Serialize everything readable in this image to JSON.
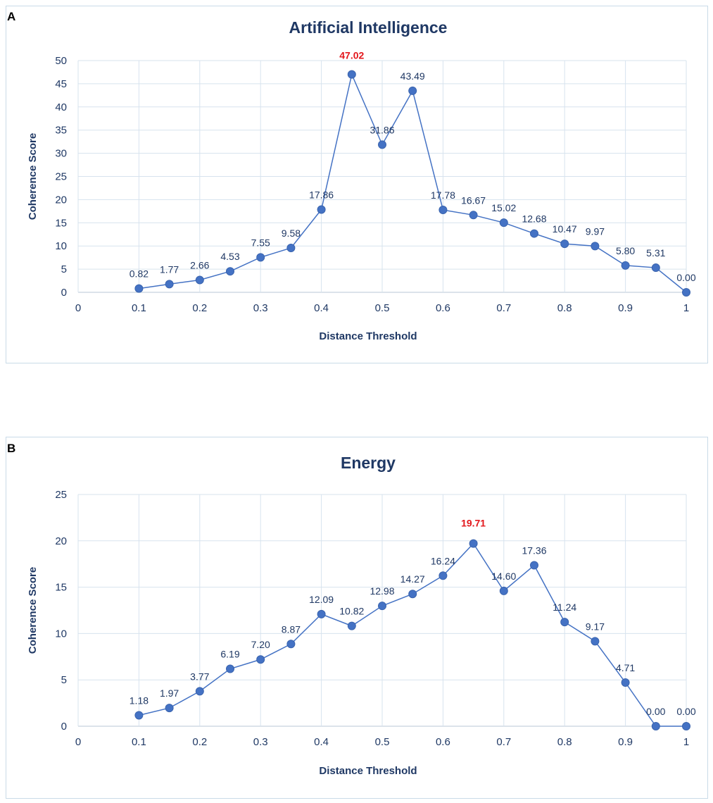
{
  "chart_data": [
    {
      "panel": "A",
      "type": "line",
      "title": "Artificial Intelligence",
      "xlabel": "Distance Threshold",
      "ylabel": "Coherence Score",
      "xlim": [
        0,
        1
      ],
      "ylim": [
        0,
        50
      ],
      "x_ticks": [
        "0",
        "0.1",
        "0.2",
        "0.3",
        "0.4",
        "0.5",
        "0.6",
        "0.7",
        "0.8",
        "0.9",
        "1"
      ],
      "y_ticks": [
        "0",
        "5",
        "10",
        "15",
        "20",
        "25",
        "30",
        "35",
        "40",
        "45",
        "50"
      ],
      "grid": true,
      "peak_color": "#e3171c",
      "series_color": "#4472c4",
      "series": [
        {
          "name": "Coherence Score",
          "x": [
            0.1,
            0.15,
            0.2,
            0.25,
            0.3,
            0.35,
            0.4,
            0.45,
            0.5,
            0.55,
            0.6,
            0.65,
            0.7,
            0.75,
            0.8,
            0.85,
            0.9,
            0.95,
            1.0
          ],
          "values": [
            0.82,
            1.77,
            2.66,
            4.53,
            7.55,
            9.58,
            17.86,
            47.02,
            31.86,
            43.49,
            17.78,
            16.67,
            15.02,
            12.68,
            10.47,
            9.97,
            5.8,
            5.31,
            0.0
          ],
          "labels": [
            "0.82",
            "1.77",
            "2.66",
            "4.53",
            "7.55",
            "9.58",
            "17.86",
            "47.02",
            "31.86",
            "43.49",
            "17.78",
            "16.67",
            "15.02",
            "12.68",
            "10.47",
            "9.97",
            "5.80",
            "5.31",
            "0.00"
          ]
        }
      ],
      "peak_index": 7
    },
    {
      "panel": "B",
      "type": "line",
      "title": "Energy",
      "xlabel": "Distance Threshold",
      "ylabel": "Coherence Score",
      "xlim": [
        0,
        1
      ],
      "ylim": [
        0,
        25
      ],
      "x_ticks": [
        "0",
        "0.1",
        "0.2",
        "0.3",
        "0.4",
        "0.5",
        "0.6",
        "0.7",
        "0.8",
        "0.9",
        "1"
      ],
      "y_ticks": [
        "0",
        "5",
        "10",
        "15",
        "20",
        "25"
      ],
      "grid": true,
      "peak_color": "#e3171c",
      "series_color": "#4472c4",
      "series": [
        {
          "name": "Coherence Score",
          "x": [
            0.1,
            0.15,
            0.2,
            0.25,
            0.3,
            0.35,
            0.4,
            0.45,
            0.5,
            0.55,
            0.6,
            0.65,
            0.7,
            0.75,
            0.8,
            0.85,
            0.9,
            0.95,
            1.0
          ],
          "values": [
            1.18,
            1.97,
            3.77,
            6.19,
            7.2,
            8.87,
            12.09,
            10.82,
            12.98,
            14.27,
            16.24,
            19.71,
            14.6,
            17.36,
            11.24,
            9.17,
            4.71,
            0.0,
            0.0
          ],
          "labels": [
            "1.18",
            "1.97",
            "3.77",
            "6.19",
            "7.20",
            "8.87",
            "12.09",
            "10.82",
            "12.98",
            "14.27",
            "16.24",
            "19.71",
            "14.60",
            "17.36",
            "11.24",
            "9.17",
            "4.71",
            "0.00",
            "0.00"
          ]
        }
      ],
      "peak_index": 11
    }
  ]
}
